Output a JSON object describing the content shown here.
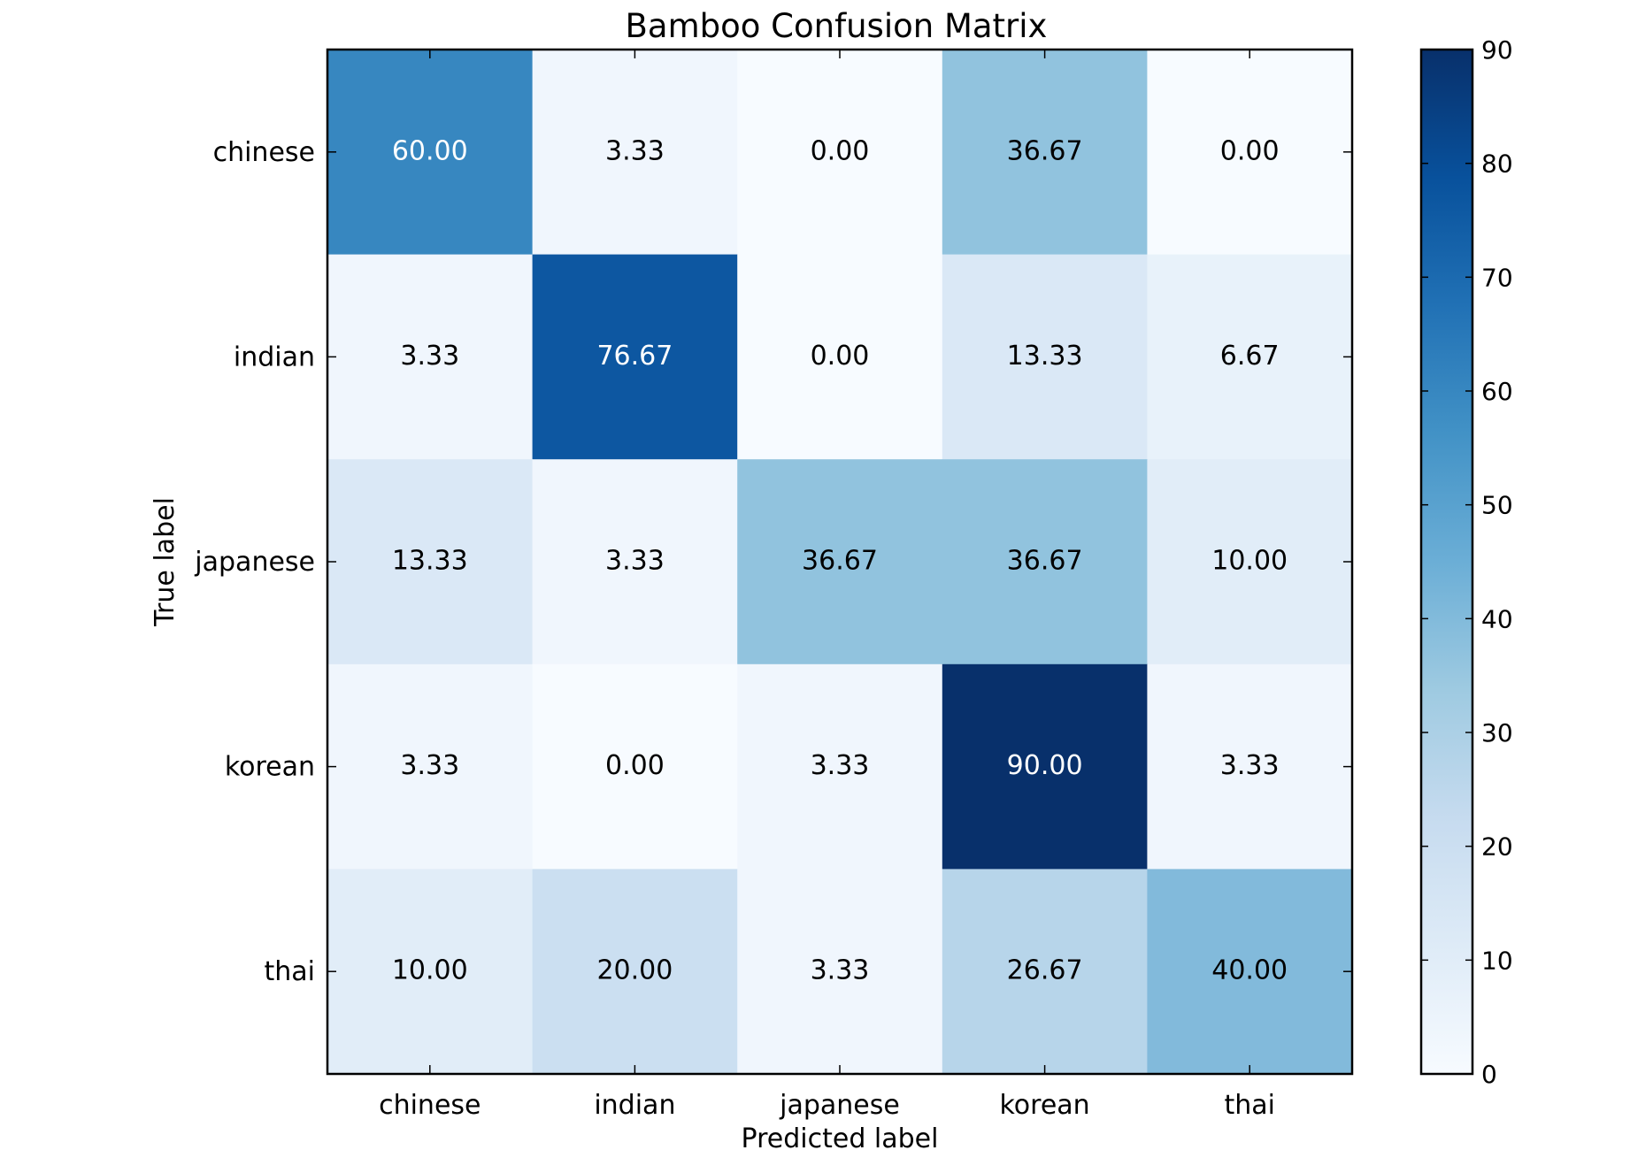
{
  "chart_data": {
    "type": "heatmap",
    "title": "Bamboo Confusion Matrix",
    "xlabel": "Predicted label",
    "ylabel": "True label",
    "x_categories": [
      "chinese",
      "indian",
      "japanese",
      "korean",
      "thai"
    ],
    "y_categories": [
      "chinese",
      "indian",
      "japanese",
      "korean",
      "thai"
    ],
    "values": [
      [
        60.0,
        3.33,
        0.0,
        36.67,
        0.0
      ],
      [
        3.33,
        76.67,
        0.0,
        13.33,
        6.67
      ],
      [
        13.33,
        3.33,
        36.67,
        36.67,
        10.0
      ],
      [
        3.33,
        0.0,
        3.33,
        90.0,
        3.33
      ],
      [
        10.0,
        20.0,
        3.33,
        26.67,
        40.0
      ]
    ],
    "value_labels": [
      [
        "60.00",
        "3.33",
        "0.00",
        "36.67",
        "0.00"
      ],
      [
        "3.33",
        "76.67",
        "0.00",
        "13.33",
        "6.67"
      ],
      [
        "13.33",
        "3.33",
        "36.67",
        "36.67",
        "10.00"
      ],
      [
        "3.33",
        "0.00",
        "3.33",
        "90.00",
        "3.33"
      ],
      [
        "10.00",
        "20.00",
        "3.33",
        "26.67",
        "40.00"
      ]
    ],
    "colormap": "Blues",
    "vmin": 0,
    "vmax": 90,
    "colorbar_ticks": [
      "0",
      "10",
      "20",
      "30",
      "40",
      "50",
      "60",
      "70",
      "80",
      "90"
    ],
    "grid": false
  }
}
